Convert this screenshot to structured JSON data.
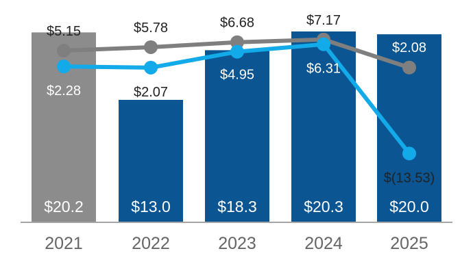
{
  "chart_data": {
    "type": "bar",
    "title": "",
    "xlabel": "",
    "ylabel": "",
    "categories": [
      "2021",
      "2022",
      "2023",
      "2024",
      "2025"
    ],
    "bars": {
      "name": "Bars",
      "values": [
        20.2,
        13.0,
        18.3,
        20.3,
        20.0
      ],
      "labels": [
        "$20.2",
        "$13.0",
        "$18.3",
        "$20.3",
        "$20.0"
      ],
      "colors": [
        "#8c8c8c",
        "#0a5592",
        "#0a5592",
        "#0a5592",
        "#0a5592"
      ],
      "ylim": [
        0,
        20.3
      ]
    },
    "series": [
      {
        "name": "Gray line",
        "type": "line",
        "color": "#7f7f7f",
        "values": [
          5.15,
          5.78,
          6.68,
          7.17,
          2.08
        ],
        "labels": [
          "$5.15",
          "$5.78",
          "$6.68",
          "$7.17",
          "$2.08"
        ]
      },
      {
        "name": "Blue line",
        "type": "line",
        "color": "#12aae9",
        "values": [
          2.28,
          2.07,
          4.95,
          6.31,
          -13.53
        ],
        "labels": [
          "$2.28",
          "$2.07",
          "$4.95",
          "$6.31",
          "$(13.53)"
        ]
      }
    ],
    "text_colors": {
      "dark": "#222222",
      "light": "#ffffff",
      "axis": "#666666"
    },
    "axis_color": "#a6a6a6"
  }
}
